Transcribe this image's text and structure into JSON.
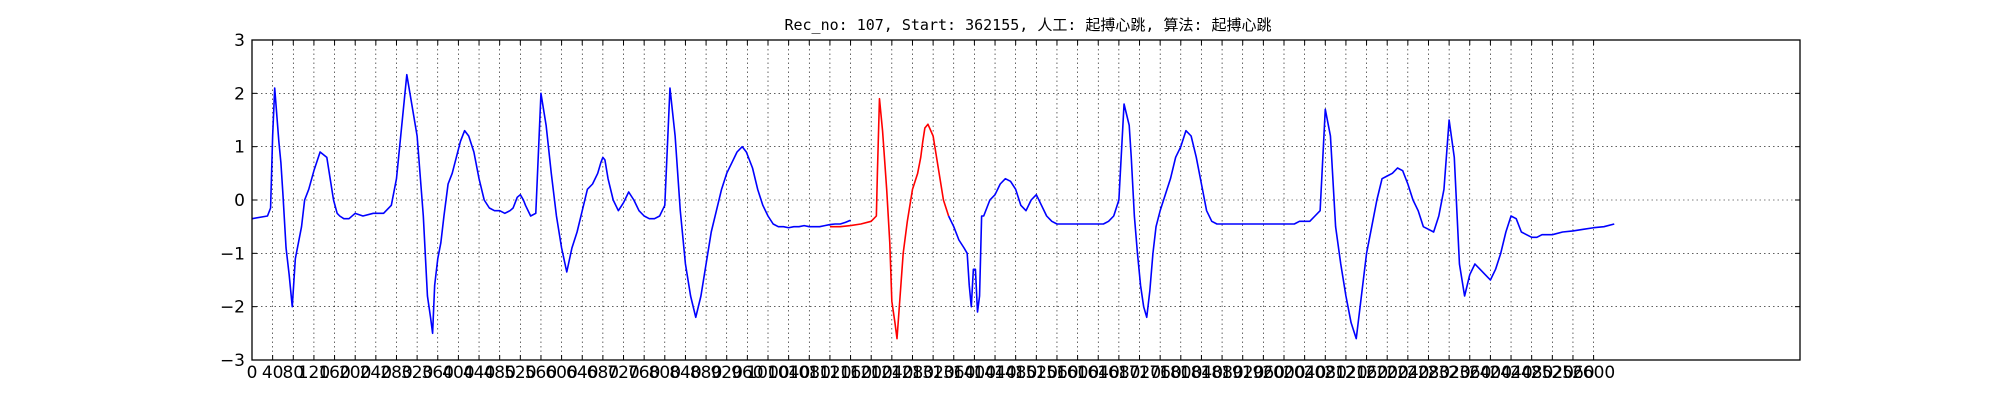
{
  "chart_data": {
    "type": "line",
    "title": "Rec_no: 107, Start: 362155, 人工: 起搏心跳, 算法: 起搏心跳",
    "xlabel": "",
    "ylabel": "",
    "xlim": [
      0,
      3000
    ],
    "ylim": [
      -3,
      3
    ],
    "grid": true,
    "x_tick_labels": [
      "0",
      "40",
      "80",
      "120",
      "160",
      "200",
      "240",
      "280",
      "320",
      "360",
      "400",
      "440",
      "480",
      "520",
      "560",
      "600",
      "640",
      "680",
      "720",
      "760",
      "800",
      "840",
      "880",
      "920",
      "960",
      "1000",
      "1040",
      "1080",
      "1120",
      "1160",
      "1200",
      "1240",
      "1280",
      "1320",
      "1360",
      "1400",
      "1440",
      "1480",
      "1520",
      "1560",
      "1600",
      "1640",
      "1680",
      "1720",
      "1760",
      "1800",
      "1840",
      "1880",
      "1920",
      "1960",
      "2000",
      "2040",
      "2080",
      "2120",
      "2160",
      "2200",
      "2240",
      "2280",
      "2320",
      "2360",
      "2400",
      "2440",
      "2480",
      "2520",
      "2560",
      "2600"
    ],
    "y_tick_labels": [
      "3",
      "2",
      "1",
      "0",
      "−1",
      "−2",
      "−3"
    ],
    "series": [
      {
        "color": "#0000ff",
        "x": [
          0,
          30,
          36,
          40,
          44,
          48,
          52,
          56,
          60,
          66,
          72,
          78,
          84,
          90,
          96,
          102,
          110,
          120,
          132,
          145,
          158,
          165,
          170,
          178,
          188,
          200,
          215,
          235,
          255,
          270,
          280,
          300,
          320,
          332,
          340,
          346,
          350,
          354,
          360,
          366,
          372,
          380,
          388,
          396,
          404,
          412,
          420,
          430,
          440,
          450,
          460,
          470,
          480,
          490,
          500,
          506,
          510,
          514,
          520,
          526,
          530,
          540,
          550,
          560,
          570,
          580,
          590,
          600,
          610,
          620,
          630,
          640,
          650,
          660,
          670,
          676,
          680,
          684,
          690,
          700,
          710,
          720,
          730,
          740,
          750,
          760,
          770,
          780,
          790,
          800,
          810,
          820,
          830,
          840,
          850,
          860,
          870,
          880,
          890,
          900,
          910,
          920,
          930,
          940,
          950,
          958,
          970,
          980,
          990,
          1000,
          1010,
          1020,
          1030,
          1040,
          1050,
          1060,
          1070,
          1080,
          1090,
          1100,
          1110,
          1120,
          1130,
          1140,
          1150,
          1160
        ],
        "y": [
          -0.35,
          -0.3,
          -0.15,
          1.2,
          2.1,
          1.6,
          1.1,
          0.7,
          0.1,
          -0.9,
          -1.4,
          -2.0,
          -1.1,
          -0.8,
          -0.5,
          0.0,
          0.2,
          0.55,
          0.9,
          0.8,
          0.0,
          -0.25,
          -0.3,
          -0.35,
          -0.35,
          -0.25,
          -0.3,
          -0.25,
          -0.25,
          -0.1,
          0.4,
          2.35,
          1.2,
          -0.3,
          -1.8,
          -2.2,
          -2.5,
          -1.6,
          -1.1,
          -0.8,
          -0.3,
          0.3,
          0.5,
          0.8,
          1.1,
          1.3,
          1.2,
          0.9,
          0.4,
          0.0,
          -0.15,
          -0.2,
          -0.2,
          -0.25,
          -0.2,
          -0.15,
          -0.05,
          0.05,
          0.1,
          0.0,
          -0.1,
          -0.3,
          -0.25,
          2.0,
          1.4,
          0.5,
          -0.3,
          -0.9,
          -1.35,
          -0.9,
          -0.6,
          -0.2,
          0.2,
          0.3,
          0.5,
          0.7,
          0.8,
          0.75,
          0.4,
          0.0,
          -0.2,
          -0.05,
          0.15,
          0.0,
          -0.2,
          -0.3,
          -0.35,
          -0.35,
          -0.3,
          -0.1,
          2.1,
          1.2,
          -0.2,
          -1.2,
          -1.8,
          -2.2,
          -1.8,
          -1.2,
          -0.6,
          -0.2,
          0.2,
          0.5,
          0.7,
          0.9,
          1.0,
          0.9,
          0.6,
          0.2,
          -0.1,
          -0.3,
          -0.45,
          -0.5,
          -0.5,
          -0.52,
          -0.5,
          -0.5,
          -0.48,
          -0.5,
          -0.5,
          -0.5,
          -0.48,
          -0.46,
          -0.45,
          -0.45,
          -0.42,
          -0.38
        ]
      },
      {
        "color": "#ff0000",
        "x": [
          1120,
          1140,
          1160,
          1180,
          1200,
          1210,
          1212,
          1216,
          1222,
          1230,
          1236,
          1240,
          1246,
          1250,
          1256,
          1262,
          1270,
          1280,
          1290,
          1296,
          1300,
          1304,
          1310,
          1320,
          1330,
          1340,
          1350
        ],
        "y": [
          -0.5,
          -0.5,
          -0.48,
          -0.45,
          -0.4,
          -0.3,
          0.5,
          1.9,
          1.3,
          0.2,
          -0.8,
          -1.9,
          -2.3,
          -2.6,
          -1.8,
          -1.0,
          -0.4,
          0.2,
          0.5,
          0.8,
          1.1,
          1.35,
          1.42,
          1.2,
          0.6,
          0.0,
          -0.3
        ]
      },
      {
        "color": "#0000ff",
        "x": [
          1350,
          1360,
          1370,
          1380,
          1386,
          1390,
          1394,
          1398,
          1402,
          1406,
          1410,
          1414,
          1418,
          1424,
          1430,
          1440,
          1450,
          1460,
          1470,
          1480,
          1490,
          1500,
          1510,
          1520,
          1530,
          1540,
          1550,
          1560,
          1570,
          1580,
          1590,
          1600,
          1610,
          1620,
          1630,
          1640,
          1650,
          1660,
          1670,
          1680,
          1690,
          1700,
          1704,
          1710,
          1716,
          1722,
          1728,
          1734,
          1740,
          1746,
          1752,
          1760,
          1770,
          1780,
          1790,
          1800,
          1810,
          1820,
          1830,
          1840,
          1850,
          1860,
          1870,
          1880,
          1890,
          1900,
          1910,
          1920,
          1930,
          1940,
          1950,
          1960,
          1970,
          1980,
          1990,
          2000,
          2010,
          2020,
          2030,
          2040,
          2050,
          2060,
          2070,
          2080,
          2090,
          2100,
          2110,
          2120,
          2130,
          2140,
          2150,
          2160,
          2170,
          2180,
          2190,
          2200,
          2210,
          2220,
          2230,
          2240,
          2250,
          2260,
          2270,
          2280,
          2290,
          2300,
          2310,
          2320,
          2330,
          2340,
          2350,
          2360,
          2370,
          2380,
          2390,
          2400,
          2410,
          2420,
          2430,
          2440,
          2450,
          2460,
          2470,
          2480,
          2490,
          2500,
          2520,
          2540,
          2560,
          2580,
          2600,
          2620,
          2640
        ],
        "y": [
          -0.3,
          -0.5,
          -0.75,
          -0.9,
          -1.0,
          -1.6,
          -2.0,
          -1.3,
          -1.3,
          -2.1,
          -1.8,
          -0.3,
          -0.3,
          -0.15,
          0.0,
          0.1,
          0.3,
          0.4,
          0.35,
          0.2,
          -0.1,
          -0.2,
          0.0,
          0.1,
          -0.1,
          -0.3,
          -0.4,
          -0.45,
          -0.45,
          -0.45,
          -0.45,
          -0.45,
          -0.45,
          -0.45,
          -0.45,
          -0.45,
          -0.45,
          -0.4,
          -0.3,
          0.0,
          1.8,
          1.4,
          0.8,
          -0.3,
          -1.0,
          -1.6,
          -2.0,
          -2.2,
          -1.7,
          -1.0,
          -0.5,
          -0.2,
          0.1,
          0.4,
          0.8,
          1.0,
          1.3,
          1.2,
          0.8,
          0.3,
          -0.2,
          -0.4,
          -0.45,
          -0.45,
          -0.45,
          -0.45,
          -0.45,
          -0.45,
          -0.45,
          -0.45,
          -0.45,
          -0.45,
          -0.45,
          -0.45,
          -0.45,
          -0.45,
          -0.45,
          -0.45,
          -0.4,
          -0.4,
          -0.4,
          -0.3,
          -0.2,
          1.7,
          1.2,
          -0.5,
          -1.2,
          -1.8,
          -2.3,
          -2.6,
          -1.8,
          -1.0,
          -0.5,
          0.0,
          0.4,
          0.45,
          0.5,
          0.6,
          0.55,
          0.3,
          0.0,
          -0.2,
          -0.5,
          -0.55,
          -0.6,
          -0.3,
          0.2,
          1.5,
          0.8,
          -1.2,
          -1.8,
          -1.4,
          -1.2,
          -1.3,
          -1.4,
          -1.5,
          -1.3,
          -1.0,
          -0.6,
          -0.3,
          -0.35,
          -0.6,
          -0.65,
          -0.7,
          -0.7,
          -0.65,
          -0.65,
          -0.6,
          -0.58,
          -0.55,
          -0.52,
          -0.5,
          -0.45
        ]
      }
    ]
  }
}
